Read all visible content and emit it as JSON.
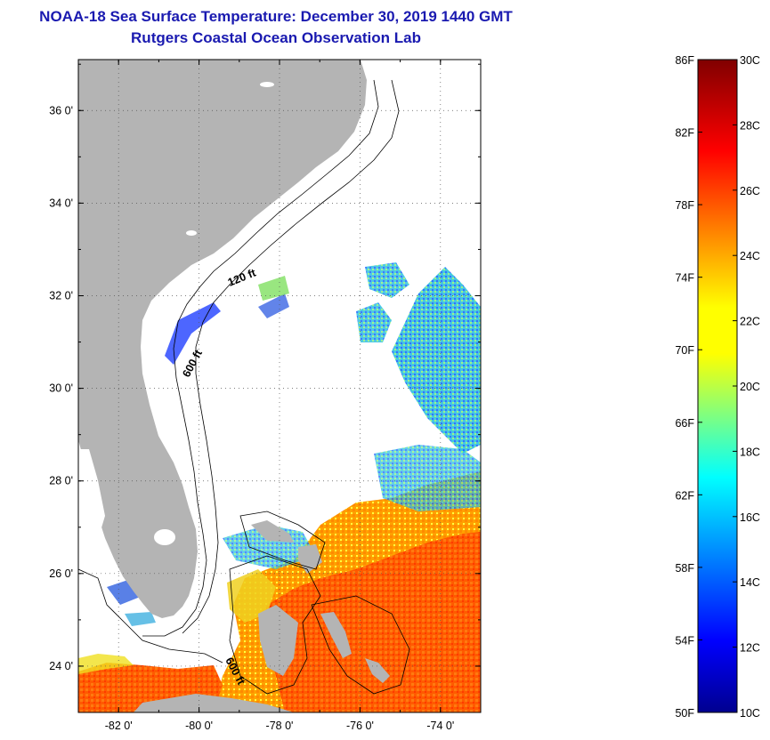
{
  "title": {
    "line1": "NOAA-18 Sea Surface Temperature:  December 30, 2019 1440 GMT",
    "line2": "Rutgers Coastal Ocean Observation Lab"
  },
  "axes": {
    "lat_ticks": [
      "24 0'",
      "26 0'",
      "28 0'",
      "30 0'",
      "32 0'",
      "34 0'",
      "36 0'"
    ],
    "lon_ticks": [
      "-82 0'",
      "-80 0'",
      "-78 0'",
      "-76 0'",
      "-74 0'"
    ],
    "lat_range": [
      23,
      37.1
    ],
    "lon_range": [
      -83,
      -73
    ]
  },
  "contour_labels": {
    "shelf_120": "120 ft",
    "shelf_600_north": "600 ft",
    "shelf_600_south": "600 ft"
  },
  "colorbar": {
    "fahrenheit_labels": [
      "86F",
      "82F",
      "78F",
      "74F",
      "70F",
      "66F",
      "62F",
      "58F",
      "54F",
      "50F"
    ],
    "celsius_labels": [
      "30C",
      "28C",
      "26C",
      "24C",
      "22C",
      "20C",
      "18C",
      "16C",
      "14C",
      "12C",
      "10C"
    ],
    "range_c": [
      10,
      30
    ]
  },
  "colors": {
    "title": "#1a1ab0",
    "land": "#b4b4b4",
    "ocean_no_data": "#ffffff"
  }
}
